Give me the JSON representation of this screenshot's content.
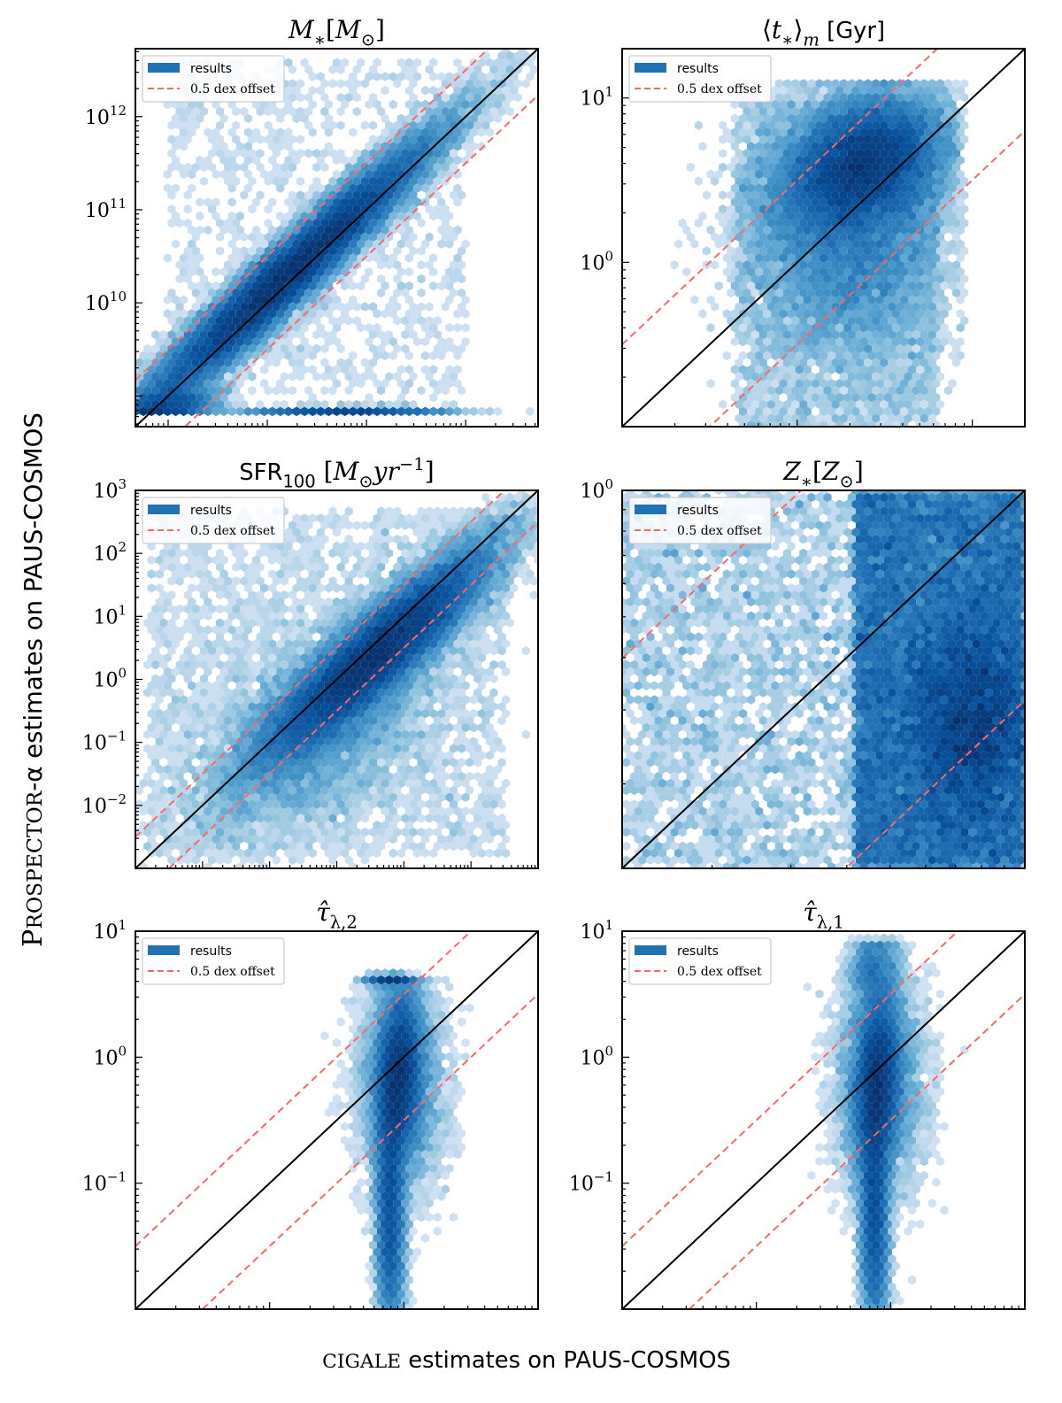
{
  "figure": {
    "ylabel_parts": [
      {
        "text": "P",
        "style": "big"
      },
      {
        "text": "ROSPECTOR",
        "style": "sc"
      },
      {
        "text": "-α estimates on PAUS-COSMOS",
        "style": "sans"
      }
    ],
    "xlabel_parts": [
      {
        "text": "CIGALE",
        "style": "sc"
      },
      {
        "text": " estimates on PAUS-COSMOS",
        "style": "sans"
      }
    ],
    "legend": {
      "results": "results",
      "offset": "0.5 dex offset"
    },
    "colors": {
      "line": "#000000",
      "offset": "#ff6666",
      "legend_patch": "#2171b5"
    },
    "colormap": "Blues"
  },
  "chart_data": [
    {
      "id": "stellar-mass",
      "type": "hexbin",
      "title_parts": [
        {
          "text": "M",
          "style": "it"
        },
        {
          "text": "∗",
          "style": "sub"
        },
        {
          "text": "[",
          "style": "rm"
        },
        {
          "text": "M",
          "style": "it"
        },
        {
          "text": "⊙",
          "style": "sub"
        },
        {
          "text": "]",
          "style": "rm"
        }
      ],
      "scale": "log",
      "xlim_log10": [
        8.67,
        12.73
      ],
      "ylim_log10": [
        8.67,
        12.73
      ],
      "yticks_exp": [
        10,
        11,
        12
      ],
      "gridsize": 50,
      "n": 40000,
      "clamp": {
        "ymin": 8.82
      },
      "components": [
        {
          "x": 10.2,
          "y": 10.3,
          "sx": 0.75,
          "sy": 0.75,
          "rho": 0.965,
          "w": 0.86
        },
        {
          "x": 10.8,
          "y": 8.83,
          "sx": 0.5,
          "sy": 0.02,
          "rho": 0,
          "w": 0.05
        },
        {
          "uniform": true,
          "xr": [
            9.0,
            12.0
          ],
          "yr": [
            9.0,
            12.6
          ],
          "w": 0.03
        },
        {
          "x": 9.0,
          "y": 8.9,
          "sx": 0.25,
          "sy": 0.1,
          "rho": 0.3,
          "w": 0.06
        }
      ],
      "reference_lines": [
        "y = x",
        "y = x + 0.5 dex",
        "y = x - 0.5 dex"
      ]
    },
    {
      "id": "mass-weighted-age",
      "type": "hexbin",
      "title_parts": [
        {
          "text": "⟨",
          "style": "rm"
        },
        {
          "text": "t",
          "style": "it"
        },
        {
          "text": "∗",
          "style": "sub"
        },
        {
          "text": "⟩",
          "style": "rm"
        },
        {
          "text": "m",
          "style": "subit"
        },
        {
          "text": " [Gyr]",
          "style": "sans"
        }
      ],
      "scale": "log",
      "xlim_log10": [
        -1.0,
        1.3
      ],
      "ylim_log10": [
        -1.0,
        1.3
      ],
      "yticks_exp": [
        0,
        1
      ],
      "gridsize": 50,
      "n": 30000,
      "clamp": {
        "ymax": 1.1,
        "xmax": 0.95
      },
      "components": [
        {
          "x": 0.38,
          "y": 0.6,
          "sx": 0.22,
          "sy": 0.2,
          "rho": 0.3,
          "w": 0.55
        },
        {
          "x": 0.3,
          "y": 0.2,
          "sx": 0.28,
          "sy": 0.4,
          "rho": 0,
          "w": 0.33
        },
        {
          "uniform": true,
          "xr": [
            -0.35,
            0.8
          ],
          "yr": [
            -1.0,
            1.0
          ],
          "w": 0.12
        }
      ],
      "reference_lines": [
        "y = x",
        "y = x + 0.5 dex",
        "y = x - 0.5 dex"
      ]
    },
    {
      "id": "sfr-100",
      "type": "hexbin",
      "title_parts": [
        {
          "text": "SFR",
          "style": "sans"
        },
        {
          "text": "100",
          "style": "subsans"
        },
        {
          "text": " [",
          "style": "rm"
        },
        {
          "text": "M",
          "style": "it"
        },
        {
          "text": "⊙",
          "style": "sub"
        },
        {
          "text": "yr",
          "style": "it"
        },
        {
          "text": "−1",
          "style": "sup"
        },
        {
          "text": "]",
          "style": "rm"
        }
      ],
      "scale": "log",
      "xlim_log10": [
        -3.0,
        3.0
      ],
      "ylim_log10": [
        -3.0,
        3.0
      ],
      "yticks_exp": [
        -2,
        -1,
        0,
        1,
        2,
        3
      ],
      "gridsize": 50,
      "n": 35000,
      "clamp": {},
      "components": [
        {
          "x": 0.6,
          "y": 0.4,
          "sx": 0.85,
          "sy": 0.85,
          "rho": 0.9,
          "w": 0.78
        },
        {
          "x": -0.3,
          "y": -0.8,
          "sx": 0.9,
          "sy": 0.9,
          "rho": 0.5,
          "w": 0.14
        },
        {
          "uniform": true,
          "xr": [
            -2.8,
            2.5
          ],
          "yr": [
            -2.8,
            2.7
          ],
          "w": 0.08
        }
      ],
      "reference_lines": [
        "y = x",
        "y = x + 0.5 dex",
        "y = x - 0.5 dex"
      ]
    },
    {
      "id": "stellar-metallicity",
      "type": "hexbin",
      "title_parts": [
        {
          "text": "Z",
          "style": "it"
        },
        {
          "text": "∗",
          "style": "sub"
        },
        {
          "text": "[",
          "style": "rm"
        },
        {
          "text": "Z",
          "style": "it"
        },
        {
          "text": "⊙",
          "style": "sub"
        },
        {
          "text": "]",
          "style": "rm"
        }
      ],
      "scale": "log",
      "xlim_log10": [
        -0.9,
        0.0
      ],
      "ylim_log10": [
        -0.9,
        0.0
      ],
      "yticks_exp": [
        0
      ],
      "gridsize": 50,
      "n": 30000,
      "clamp": {},
      "components": [
        {
          "uniform": true,
          "xr": [
            -0.38,
            0.0
          ],
          "yr": [
            -0.9,
            0.0
          ],
          "w": 0.66
        },
        {
          "x": -0.12,
          "y": -0.55,
          "sx": 0.08,
          "sy": 0.15,
          "rho": 0,
          "w": 0.24
        },
        {
          "uniform": true,
          "xr": [
            -0.9,
            -0.3
          ],
          "yr": [
            -0.9,
            0.0
          ],
          "w": 0.1
        }
      ],
      "reference_lines": [
        "y = x",
        "y = x + 0.5 dex",
        "y = x - 0.5 dex"
      ]
    },
    {
      "id": "tau-lambda-2",
      "type": "hexbin",
      "title_parts": [
        {
          "text": "τ̂",
          "style": "it"
        },
        {
          "text": "λ,2",
          "style": "sub"
        }
      ],
      "scale": "log",
      "xlim_log10": [
        -2.0,
        1.0
      ],
      "ylim_log10": [
        -2.0,
        1.0
      ],
      "yticks_exp": [
        -1,
        0,
        1
      ],
      "gridsize": 50,
      "n": 30000,
      "clamp": {
        "ymax": 0.64
      },
      "components": [
        {
          "x": -0.04,
          "y": -0.15,
          "sx": 0.075,
          "sy": 0.33,
          "rho": 0.2,
          "w": 0.5
        },
        {
          "x": -0.1,
          "y": -1.2,
          "sx": 0.05,
          "sy": 0.5,
          "rho": 0,
          "w": 0.28
        },
        {
          "x": -0.1,
          "y": 0.62,
          "sx": 0.08,
          "sy": 0.02,
          "rho": 0,
          "w": 0.04
        },
        {
          "x": -0.02,
          "y": -0.2,
          "sx": 0.15,
          "sy": 0.4,
          "rho": 0,
          "w": 0.18
        }
      ],
      "reference_lines": [
        "y = x",
        "y = x + 0.5 dex",
        "y = x - 0.5 dex"
      ]
    },
    {
      "id": "tau-lambda-1",
      "type": "hexbin",
      "title_parts": [
        {
          "text": "τ̂",
          "style": "it"
        },
        {
          "text": "λ,1",
          "style": "sub"
        }
      ],
      "scale": "log",
      "xlim_log10": [
        -2.0,
        1.0
      ],
      "ylim_log10": [
        -2.0,
        1.0
      ],
      "yticks_exp": [
        -1,
        0,
        1
      ],
      "gridsize": 50,
      "n": 30000,
      "clamp": {
        "ymax": 0.92
      },
      "components": [
        {
          "x": -0.1,
          "y": -0.2,
          "sx": 0.08,
          "sy": 0.35,
          "rho": 0.2,
          "w": 0.5
        },
        {
          "x": -0.12,
          "y": -1.2,
          "sx": 0.05,
          "sy": 0.5,
          "rho": 0,
          "w": 0.28
        },
        {
          "x": -0.12,
          "y": 0.7,
          "sx": 0.09,
          "sy": 0.15,
          "rho": 0,
          "w": 0.05
        },
        {
          "x": -0.08,
          "y": -0.2,
          "sx": 0.16,
          "sy": 0.42,
          "rho": 0,
          "w": 0.17
        }
      ],
      "reference_lines": [
        "y = x",
        "y = x + 0.5 dex",
        "y = x - 0.5 dex"
      ]
    }
  ]
}
